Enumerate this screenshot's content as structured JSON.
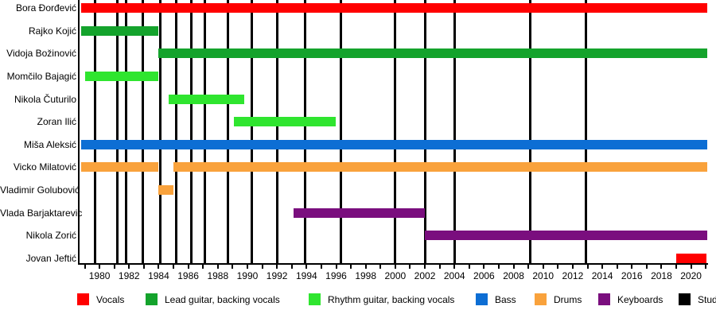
{
  "chart_data": {
    "type": "bar",
    "subtype": "membership-timeline-gantt",
    "title": "",
    "x_axis": {
      "min": 1978.65,
      "max": 2021.15,
      "tick_interval": 1,
      "first_tick": 1979,
      "last_tick": 2021,
      "labeled_ticks": [
        1980,
        1982,
        1984,
        1986,
        1988,
        1990,
        1992,
        1994,
        1996,
        1998,
        2000,
        2002,
        2004,
        2006,
        2008,
        2010,
        2012,
        2014,
        2016,
        2018,
        2020
      ],
      "grid": false
    },
    "colors": {
      "red": "#FF0000",
      "green": "#14A32C",
      "lightgreen": "#2FE52F",
      "blue": "#0D6ED4",
      "orange": "#F9A23C",
      "purple": "#7A0E7E",
      "black": "#000000"
    },
    "rows": [
      {
        "name": "Bora Đorđević",
        "segments": [
          {
            "start": 1978.75,
            "end": 2021.1,
            "color": "red"
          }
        ]
      },
      {
        "name": "Rajko Kojić",
        "segments": [
          {
            "start": 1978.75,
            "end": 1984.0,
            "color": "green"
          }
        ]
      },
      {
        "name": "Vidoja Božinović",
        "segments": [
          {
            "start": 1984.0,
            "end": 2021.1,
            "color": "green"
          }
        ]
      },
      {
        "name": "Momčilo Bajagić",
        "segments": [
          {
            "start": 1979.0,
            "end": 1984.0,
            "color": "lightgreen"
          }
        ]
      },
      {
        "name": "Nikola Čuturilo",
        "segments": [
          {
            "start": 1984.7,
            "end": 1989.8,
            "color": "lightgreen"
          }
        ]
      },
      {
        "name": "Zoran Ilić",
        "segments": [
          {
            "start": 1989.1,
            "end": 1996.0,
            "color": "lightgreen"
          }
        ]
      },
      {
        "name": "Miša Aleksić",
        "segments": [
          {
            "start": 1978.75,
            "end": 2021.1,
            "color": "blue"
          }
        ]
      },
      {
        "name": "Vicko Milatović",
        "segments": [
          {
            "start": 1978.75,
            "end": 1984.0,
            "color": "orange"
          },
          {
            "start": 1985.0,
            "end": 2021.1,
            "color": "orange"
          }
        ]
      },
      {
        "name": "Vladimir Golubović",
        "segments": [
          {
            "start": 1984.0,
            "end": 1985.0,
            "color": "orange"
          }
        ]
      },
      {
        "name": "Vlada Barjaktarevic",
        "segments": [
          {
            "start": 1993.1,
            "end": 2002.0,
            "color": "purple"
          }
        ]
      },
      {
        "name": "Nikola Zorić",
        "segments": [
          {
            "start": 2002.0,
            "end": 2021.1,
            "color": "purple"
          }
        ]
      },
      {
        "name": "Jovan Jeftić",
        "segments": [
          {
            "start": 2019.0,
            "end": 2021.05,
            "color": "red"
          }
        ]
      }
    ],
    "album_release_lines": [
      1979.7,
      1981.2,
      1981.8,
      1982.9,
      1984.1,
      1985.2,
      1986.2,
      1987.1,
      1988.7,
      1990.3,
      1992.0,
      1993.9,
      1996.3,
      2000.0,
      2002.0,
      2004.0,
      2009.1,
      2012.9
    ],
    "legend": {
      "position": "bottom",
      "items": [
        {
          "label": "Vocals",
          "color": "red"
        },
        {
          "label": "Lead guitar, backing vocals",
          "color": "green"
        },
        {
          "label": "Rhythm guitar, backing vocals",
          "color": "lightgreen"
        },
        {
          "label": "Bass",
          "color": "blue"
        },
        {
          "label": "Drums",
          "color": "orange"
        },
        {
          "label": "Keyboards",
          "color": "purple"
        },
        {
          "label": "Studio albums",
          "color": "black"
        }
      ]
    }
  }
}
